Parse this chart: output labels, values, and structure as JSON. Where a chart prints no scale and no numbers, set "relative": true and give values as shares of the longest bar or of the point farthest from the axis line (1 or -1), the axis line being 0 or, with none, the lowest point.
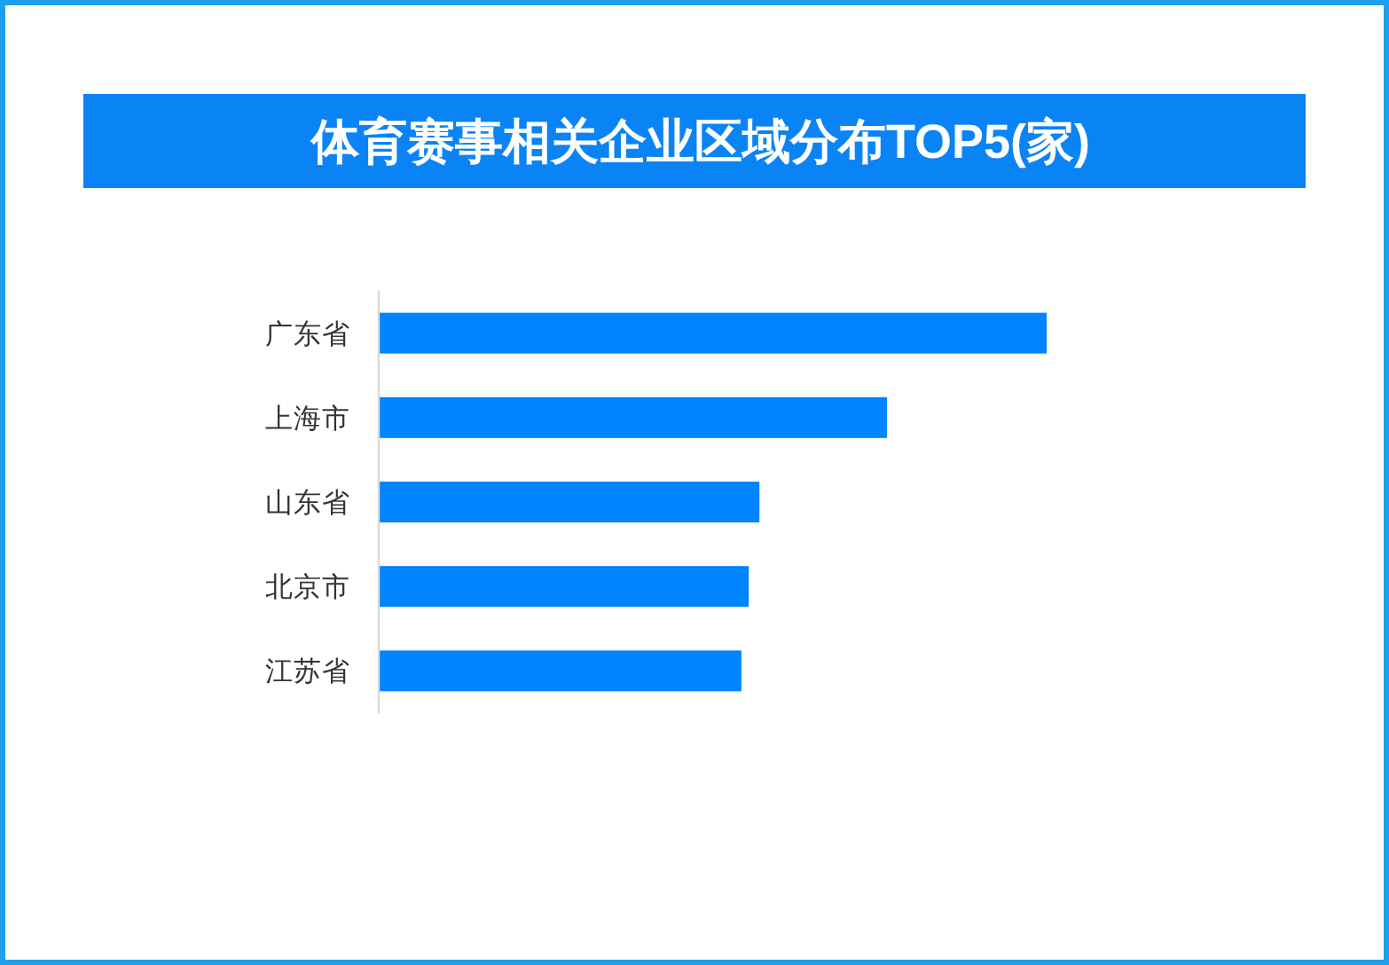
{
  "chart_data": {
    "type": "bar",
    "orientation": "horizontal",
    "relative": true,
    "title": "体育赛事相关企业区域分布TOP5(家)",
    "categories": [
      "广东省",
      "上海市",
      "山东省",
      "北京市",
      "江苏省"
    ],
    "values": [
      1,
      0.761,
      0.57,
      0.554,
      0.543
    ],
    "color": "#0084ff"
  }
}
